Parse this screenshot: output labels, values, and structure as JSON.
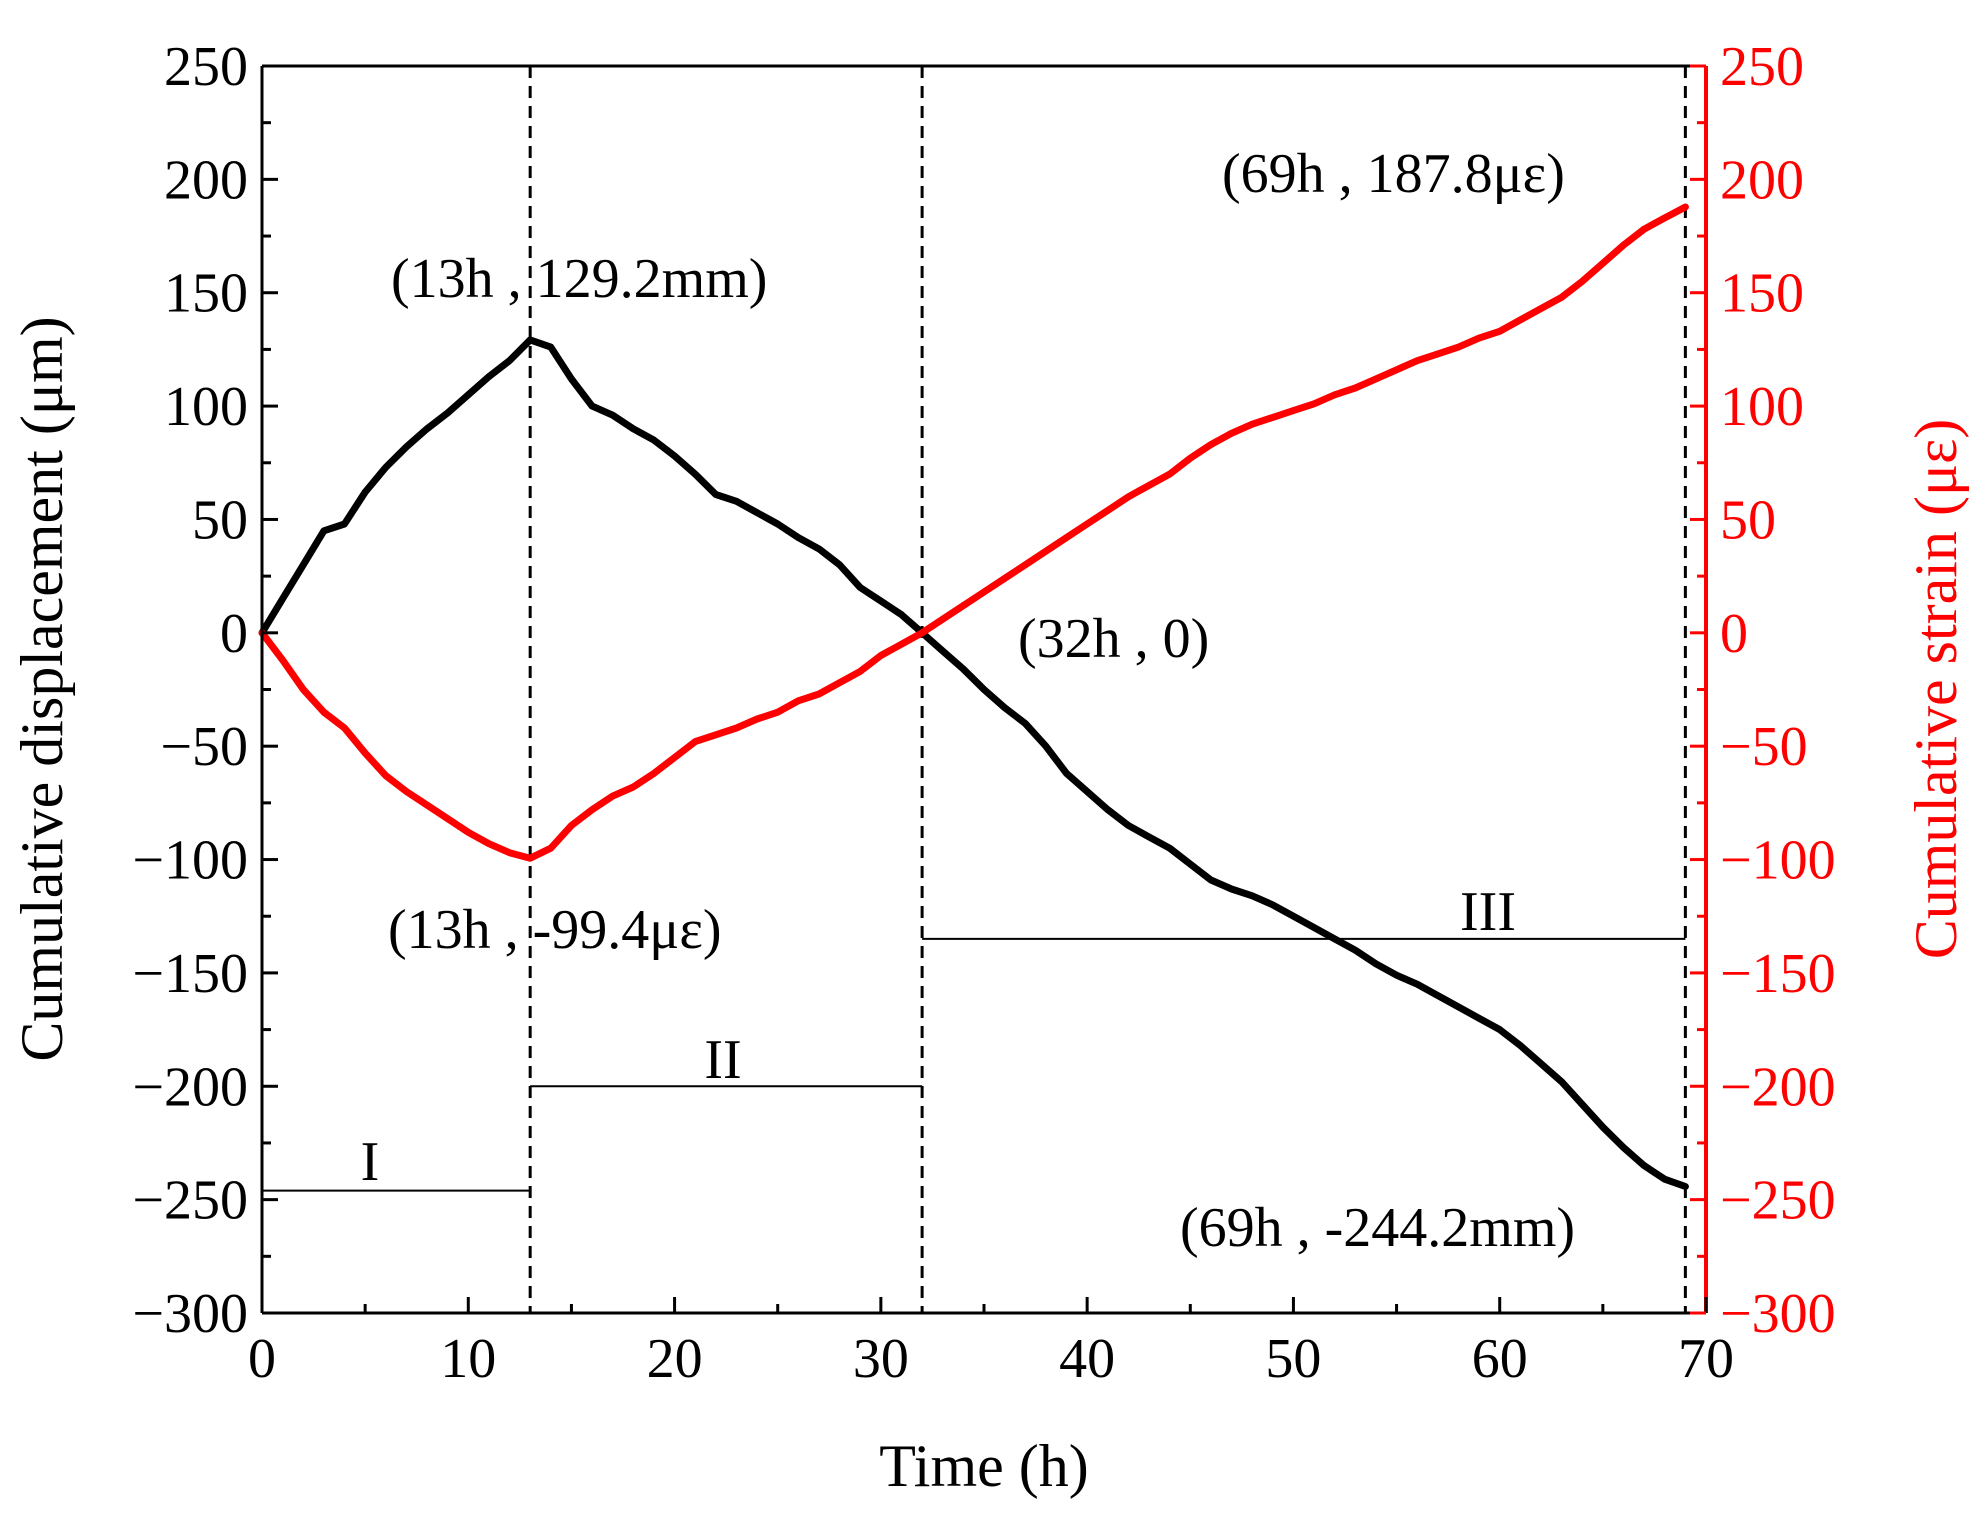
{
  "chart_data": {
    "type": "line",
    "xlabel": "Time (h)",
    "ylabel_left": "Cumulative displacement (μm)",
    "ylabel_right": "Cumulative strain (με)",
    "xlim": [
      0,
      70
    ],
    "ylim_left": [
      -300,
      250
    ],
    "ylim_right": [
      -300,
      250
    ],
    "x_ticks": [
      "0",
      "10",
      "20",
      "30",
      "40",
      "50",
      "60",
      "70"
    ],
    "y_ticks_left": [
      "250",
      "200",
      "150",
      "100",
      "50",
      "0",
      "−50",
      "−100",
      "−150",
      "−200",
      "−250",
      "−300"
    ],
    "y_ticks_right": [
      "250",
      "200",
      "150",
      "100",
      "50",
      "0",
      "−50",
      "−100",
      "−150",
      "−200",
      "−250",
      "−300"
    ],
    "grid": false,
    "colors": {
      "displacement": "#000000",
      "strain": "#ff0000"
    },
    "series": [
      {
        "name": "Cumulative displacement",
        "axis": "left",
        "color": "#000000",
        "x": [
          0,
          1,
          2,
          3,
          4,
          5,
          6,
          7,
          8,
          9,
          10,
          11,
          12,
          13,
          14,
          15,
          16,
          17,
          18,
          19,
          20,
          21,
          22,
          23,
          24,
          25,
          26,
          27,
          28,
          29,
          30,
          31,
          32,
          33,
          34,
          35,
          36,
          37,
          38,
          39,
          40,
          41,
          42,
          43,
          44,
          45,
          46,
          47,
          48,
          49,
          50,
          51,
          52,
          53,
          54,
          55,
          56,
          57,
          58,
          59,
          60,
          61,
          62,
          63,
          64,
          65,
          66,
          67,
          68,
          69
        ],
        "y": [
          0,
          15,
          30,
          45,
          48,
          62,
          73,
          82,
          90,
          97,
          105,
          113,
          120,
          129.2,
          126,
          112,
          100,
          96,
          90,
          85,
          78,
          70,
          61,
          58,
          53,
          48,
          42,
          37,
          30,
          20,
          14,
          8,
          0,
          -8,
          -16,
          -25,
          -33,
          -40,
          -50,
          -62,
          -70,
          -78,
          -85,
          -90,
          -95,
          -102,
          -109,
          -113,
          -116,
          -120,
          -125,
          -130,
          -135,
          -140,
          -146,
          -151,
          -155,
          -160,
          -165,
          -170,
          -175,
          -182,
          -190,
          -198,
          -208,
          -218,
          -227,
          -235,
          -241,
          -244.2
        ]
      },
      {
        "name": "Cumulative strain",
        "axis": "right",
        "color": "#ff0000",
        "x": [
          0,
          1,
          2,
          3,
          4,
          5,
          6,
          7,
          8,
          9,
          10,
          11,
          12,
          13,
          14,
          15,
          16,
          17,
          18,
          19,
          20,
          21,
          22,
          23,
          24,
          25,
          26,
          27,
          28,
          29,
          30,
          31,
          32,
          33,
          34,
          35,
          36,
          37,
          38,
          39,
          40,
          41,
          42,
          43,
          44,
          45,
          46,
          47,
          48,
          49,
          50,
          51,
          52,
          53,
          54,
          55,
          56,
          57,
          58,
          59,
          60,
          61,
          62,
          63,
          64,
          65,
          66,
          67,
          68,
          69
        ],
        "y": [
          0,
          -12,
          -25,
          -35,
          -42,
          -53,
          -63,
          -70,
          -76,
          -82,
          -88,
          -93,
          -97,
          -99.4,
          -95,
          -85,
          -78,
          -72,
          -68,
          -62,
          -55,
          -48,
          -45,
          -42,
          -38,
          -35,
          -30,
          -27,
          -22,
          -17,
          -10,
          -5,
          0,
          6,
          12,
          18,
          24,
          30,
          36,
          42,
          48,
          54,
          60,
          65,
          70,
          77,
          83,
          88,
          92,
          95,
          98,
          101,
          105,
          108,
          112,
          116,
          120,
          123,
          126,
          130,
          133,
          138,
          143,
          148,
          155,
          163,
          171,
          178,
          183,
          187.8
        ]
      }
    ],
    "vlines_x": [
      13,
      32,
      69
    ],
    "phases": [
      {
        "label": "I",
        "x_start": 0,
        "x_end": 13,
        "y": -246
      },
      {
        "label": "II",
        "x_start": 13,
        "x_end": 32,
        "y": -200
      },
      {
        "label": "III",
        "x_start": 32,
        "x_end": 69,
        "y": -135
      }
    ],
    "annotations": [
      {
        "id": "disp-peak",
        "text": "(13h , 129.2mm)"
      },
      {
        "id": "strain-min",
        "text": "(13h , -99.4με)"
      },
      {
        "id": "cross",
        "text": "(32h , 0)"
      },
      {
        "id": "strain-end",
        "text": "(69h , 187.8με)"
      },
      {
        "id": "disp-end",
        "text": "(69h , -244.2mm)"
      }
    ]
  }
}
